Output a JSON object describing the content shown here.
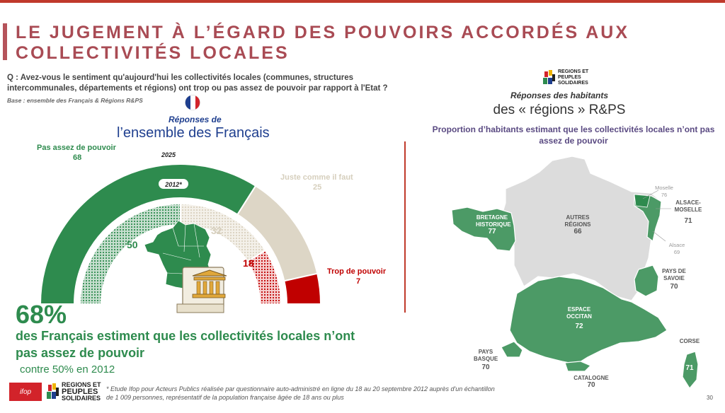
{
  "title": "LE JUGEMENT À L’ÉGARD DES POUVOIRS ACCORDÉS AUX COLLECTIVITÉS LOCALES",
  "question": "Q : Avez-vous le sentiment qu'aujourd'hui les collectivités locales (communes, structures intercommunales, départements et régions) ont trop ou pas assez de pouvoir par rapport à l'Etat ?",
  "base": "Base : ensemble des Français & Régions R&PS",
  "left": {
    "subtitle_italic": "Réponses de",
    "subtitle_big": "l’ensemble des Français",
    "year_2025": "2025",
    "year_2012": "2012*",
    "labels": {
      "pas_assez": "Pas assez de pouvoir",
      "juste": "Juste comme il faut",
      "trop": "Trop de pouvoir"
    },
    "big_pct": "68%",
    "big_text": "des Français estiment que les collectivités locales n’ont pas assez de pouvoir",
    "contre": "contre 50% en 2012"
  },
  "chart_data": {
    "type": "semi-donut",
    "title": "Réponses de l’ensemble des Français",
    "categories": [
      "Pas assez de pouvoir",
      "Juste comme il faut",
      "Trop de pouvoir"
    ],
    "series": [
      {
        "name": "2025",
        "values": [
          68,
          25,
          7
        ]
      },
      {
        "name": "2012*",
        "values": [
          50,
          32,
          18
        ]
      }
    ],
    "colors": [
      "#2e8b4e",
      "#ddd6c6",
      "#c00000"
    ]
  },
  "right": {
    "heading_italic": "Réponses des habitants",
    "heading_big": "des « régions » R&PS",
    "proportion": "Proportion d’habitants estimant que les collectivités locales n’ont pas assez de pouvoir",
    "regions": {
      "bretagne": {
        "name": "BRETAGNE HISTORIQUE",
        "value": "77"
      },
      "autres": {
        "name": "AUTRES RÉGIONS",
        "value": "66"
      },
      "moselle": {
        "name": "Moselle",
        "value": "76"
      },
      "alsace_moselle": {
        "name": "ALSACE-MOSELLE",
        "value": "71"
      },
      "alsace": {
        "name": "Alsace",
        "value": "69"
      },
      "savoie": {
        "name": "PAYS DE SAVOIE",
        "value": "70"
      },
      "occitan": {
        "name": "ESPACE OCCITAN",
        "value": "72"
      },
      "basque": {
        "name": "PAYS BASQUE",
        "value": "70"
      },
      "catalogne": {
        "name": "CATALOGNE",
        "value": "70"
      },
      "corse": {
        "name": "CORSE",
        "value": "71"
      }
    }
  },
  "logos": {
    "ifop": "ifop",
    "rps_line1": "REGIONS ET",
    "rps_line2": "PEUPLES",
    "rps_line3": "SOLIDAIRES"
  },
  "footnote": "* Etude Ifop pour Acteurs Publics réalisée par questionnaire auto-administré en ligne du 18 au 20 septembre 2012 auprès d'un échantillon de 1 009 personnes, représentatif de la population française âgée de 18 ans ou plus",
  "page_number": "30"
}
